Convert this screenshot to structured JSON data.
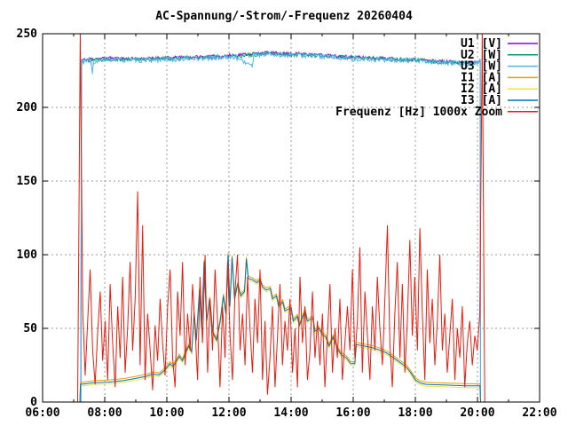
{
  "chart_data": {
    "type": "line",
    "title": "AC-Spannung/-Strom/-Frequenz 20260404",
    "xlabel": "",
    "ylabel": "",
    "grid": true,
    "legend_position": "top-right-inside",
    "x_axis": {
      "range_hours": [
        6,
        22
      ],
      "minor_tick_step_hours": 1,
      "major_ticks": [
        {
          "hour": 6,
          "label": "06:00"
        },
        {
          "hour": 8,
          "label": "08:00"
        },
        {
          "hour": 10,
          "label": "10:00"
        },
        {
          "hour": 12,
          "label": "12:00"
        },
        {
          "hour": 14,
          "label": "14:00"
        },
        {
          "hour": 16,
          "label": "16:00"
        },
        {
          "hour": 18,
          "label": "18:00"
        },
        {
          "hour": 20,
          "label": "20:00"
        },
        {
          "hour": 22,
          "label": "22:00"
        }
      ]
    },
    "y_axis": {
      "range": [
        0,
        250
      ],
      "ticks": [
        0,
        50,
        100,
        150,
        200,
        250
      ]
    },
    "shared": {
      "current_base_points": [
        [
          7.2,
          0
        ],
        [
          7.22,
          12
        ],
        [
          7.6,
          13
        ],
        [
          8.1,
          13.5
        ],
        [
          8.6,
          14.5
        ],
        [
          9.0,
          16
        ],
        [
          9.35,
          17.5
        ],
        [
          9.55,
          19
        ],
        [
          9.75,
          18.5
        ],
        [
          9.95,
          22
        ],
        [
          10.1,
          26
        ],
        [
          10.2,
          24
        ],
        [
          10.4,
          31
        ],
        [
          10.5,
          28
        ],
        [
          10.7,
          38
        ],
        [
          10.8,
          34
        ],
        [
          10.88,
          60
        ],
        [
          10.95,
          42
        ],
        [
          11.05,
          76
        ],
        [
          11.12,
          50
        ],
        [
          11.2,
          95
        ],
        [
          11.28,
          55
        ],
        [
          11.38,
          70
        ],
        [
          11.48,
          47
        ],
        [
          11.6,
          42
        ],
        [
          11.72,
          55
        ],
        [
          11.82,
          72
        ],
        [
          11.9,
          60
        ],
        [
          11.97,
          100
        ],
        [
          12.03,
          65
        ],
        [
          12.1,
          98
        ],
        [
          12.18,
          70
        ],
        [
          12.28,
          80
        ],
        [
          12.38,
          72
        ],
        [
          12.5,
          75
        ],
        [
          12.56,
          97
        ],
        [
          12.62,
          84
        ],
        [
          12.75,
          83
        ],
        [
          12.9,
          81
        ],
        [
          13.0,
          83
        ],
        [
          13.08,
          78
        ],
        [
          13.2,
          76
        ],
        [
          13.33,
          77
        ],
        [
          13.4,
          70
        ],
        [
          13.53,
          72
        ],
        [
          13.6,
          65
        ],
        [
          13.73,
          68
        ],
        [
          13.8,
          62
        ],
        [
          14.0,
          64
        ],
        [
          14.07,
          55
        ],
        [
          14.2,
          58
        ],
        [
          14.27,
          52
        ],
        [
          14.45,
          62
        ],
        [
          14.52,
          55
        ],
        [
          14.7,
          57
        ],
        [
          14.77,
          48
        ],
        [
          14.9,
          50
        ],
        [
          15.0,
          46
        ],
        [
          15.12,
          44
        ],
        [
          15.22,
          38
        ],
        [
          15.35,
          44
        ],
        [
          15.5,
          36
        ],
        [
          15.62,
          32
        ],
        [
          15.78,
          30
        ],
        [
          15.92,
          26
        ],
        [
          16.05,
          26
        ],
        [
          16.1,
          39
        ],
        [
          16.35,
          38
        ],
        [
          16.6,
          37
        ],
        [
          16.9,
          35
        ],
        [
          17.1,
          33
        ],
        [
          17.3,
          30
        ],
        [
          17.5,
          27
        ],
        [
          17.7,
          24
        ],
        [
          17.85,
          20
        ],
        [
          18.0,
          15
        ],
        [
          18.15,
          13
        ],
        [
          18.35,
          12
        ],
        [
          19.0,
          11.5
        ],
        [
          19.6,
          11
        ],
        [
          20.08,
          11
        ],
        [
          20.1,
          0
        ]
      ]
    },
    "series": [
      {
        "name": "U1 [V]",
        "color": "#9400d3",
        "jitter_amp": 1.1,
        "jitter_seed": 11,
        "points": [
          [
            7.23,
            0
          ],
          [
            7.25,
            232
          ],
          [
            7.6,
            233
          ],
          [
            8.2,
            233.5
          ],
          [
            9.0,
            233
          ],
          [
            9.8,
            233.5
          ],
          [
            10.6,
            234
          ],
          [
            11.4,
            234.5
          ],
          [
            12.2,
            235.5
          ],
          [
            12.8,
            236.5
          ],
          [
            13.2,
            237
          ],
          [
            13.8,
            236.5
          ],
          [
            14.4,
            236.5
          ],
          [
            15.0,
            235.5
          ],
          [
            15.6,
            234.5
          ],
          [
            16.2,
            234
          ],
          [
            16.8,
            233.5
          ],
          [
            17.4,
            233
          ],
          [
            18.0,
            232.5
          ],
          [
            18.6,
            231.5
          ],
          [
            19.2,
            231
          ],
          [
            19.7,
            230.5
          ],
          [
            20.0,
            231.5
          ],
          [
            20.09,
            232
          ],
          [
            20.1,
            0
          ]
        ]
      },
      {
        "name": "U2 [W]",
        "color": "#009e73",
        "jitter_amp": 1.5,
        "jitter_seed": 22,
        "points": [
          [
            7.23,
            0
          ],
          [
            7.25,
            231.5
          ],
          [
            7.6,
            232.5
          ],
          [
            8.2,
            233
          ],
          [
            9.0,
            232.5
          ],
          [
            9.8,
            233
          ],
          [
            10.6,
            233.5
          ],
          [
            11.4,
            234
          ],
          [
            12.2,
            235
          ],
          [
            12.8,
            236
          ],
          [
            13.2,
            236.5
          ],
          [
            13.8,
            236
          ],
          [
            14.4,
            236
          ],
          [
            15.0,
            235
          ],
          [
            15.6,
            234
          ],
          [
            16.2,
            233.5
          ],
          [
            16.8,
            233
          ],
          [
            17.4,
            232.5
          ],
          [
            18.0,
            232
          ],
          [
            18.6,
            231
          ],
          [
            19.2,
            230.5
          ],
          [
            19.7,
            230
          ],
          [
            20.0,
            231
          ],
          [
            20.09,
            231.5
          ],
          [
            20.1,
            0
          ]
        ]
      },
      {
        "name": "U3 [W]",
        "color": "#56b4e9",
        "jitter_amp": 1.8,
        "jitter_seed": 33,
        "points": [
          [
            7.23,
            0
          ],
          [
            7.25,
            231
          ],
          [
            7.5,
            232
          ],
          [
            7.56,
            230
          ],
          [
            7.6,
            222
          ],
          [
            7.64,
            231
          ],
          [
            8.2,
            232.5
          ],
          [
            9.0,
            232
          ],
          [
            9.8,
            232.5
          ],
          [
            10.6,
            233
          ],
          [
            11.4,
            233.5
          ],
          [
            12.2,
            234.5
          ],
          [
            12.75,
            228
          ],
          [
            12.8,
            235.5
          ],
          [
            13.2,
            236
          ],
          [
            13.8,
            235.5
          ],
          [
            14.4,
            235.5
          ],
          [
            15.0,
            234.5
          ],
          [
            15.6,
            233.5
          ],
          [
            16.2,
            233
          ],
          [
            16.8,
            232.5
          ],
          [
            17.4,
            232
          ],
          [
            18.0,
            231.5
          ],
          [
            18.6,
            230.5
          ],
          [
            19.2,
            230
          ],
          [
            19.7,
            229.5
          ],
          [
            20.0,
            230.5
          ],
          [
            20.09,
            231
          ],
          [
            20.1,
            0
          ]
        ]
      },
      {
        "name": "I1 [A]",
        "color": "#e69f00",
        "base": "current_base_points",
        "offset": 1.4
      },
      {
        "name": "I2 [A]",
        "color": "#f0e442",
        "base": "current_base_points",
        "offset": -1.2
      },
      {
        "name": "I3 [A]",
        "color": "#0072b2",
        "base": "current_base_points",
        "offset": 0
      },
      {
        "name": "Frequenz [Hz] 1000x Zoom",
        "color": "#e51e10",
        "t0": 7.13,
        "dt": 0.0804,
        "values": [
          0,
          250,
          62,
          18,
          55,
          90,
          35,
          12,
          48,
          75,
          28,
          55,
          15,
          80,
          40,
          10,
          65,
          30,
          85,
          20,
          50,
          95,
          35,
          70,
          143,
          25,
          120,
          15,
          60,
          35,
          8,
          52,
          28,
          70,
          40,
          18,
          65,
          90,
          30,
          10,
          75,
          45,
          95,
          25,
          60,
          35,
          80,
          50,
          15,
          85,
          40,
          100,
          20,
          70,
          35,
          90,
          55,
          10,
          65,
          30,
          95,
          45,
          15,
          75,
          100,
          35,
          60,
          25,
          85,
          50,
          20,
          70,
          40,
          90,
          15,
          55,
          5,
          30,
          65,
          10,
          45,
          80,
          25,
          55,
          35,
          70,
          20,
          50,
          10,
          85,
          40,
          65,
          15,
          35,
          75,
          30,
          55,
          25,
          60,
          10,
          45,
          80,
          20,
          50,
          30,
          70,
          15,
          40,
          65,
          35,
          90,
          30,
          55,
          105,
          20,
          75,
          45,
          15,
          65,
          35,
          85,
          50,
          25,
          70,
          120,
          40,
          10,
          60,
          95,
          30,
          80,
          20,
          55,
          110,
          45,
          85,
          35,
          118,
          60,
          15,
          90,
          40,
          70,
          25,
          55,
          100,
          35,
          60,
          20,
          45,
          70,
          15,
          50,
          30,
          65,
          10,
          40,
          55,
          25,
          45,
          35,
          60,
          250,
          0
        ]
      }
    ]
  }
}
